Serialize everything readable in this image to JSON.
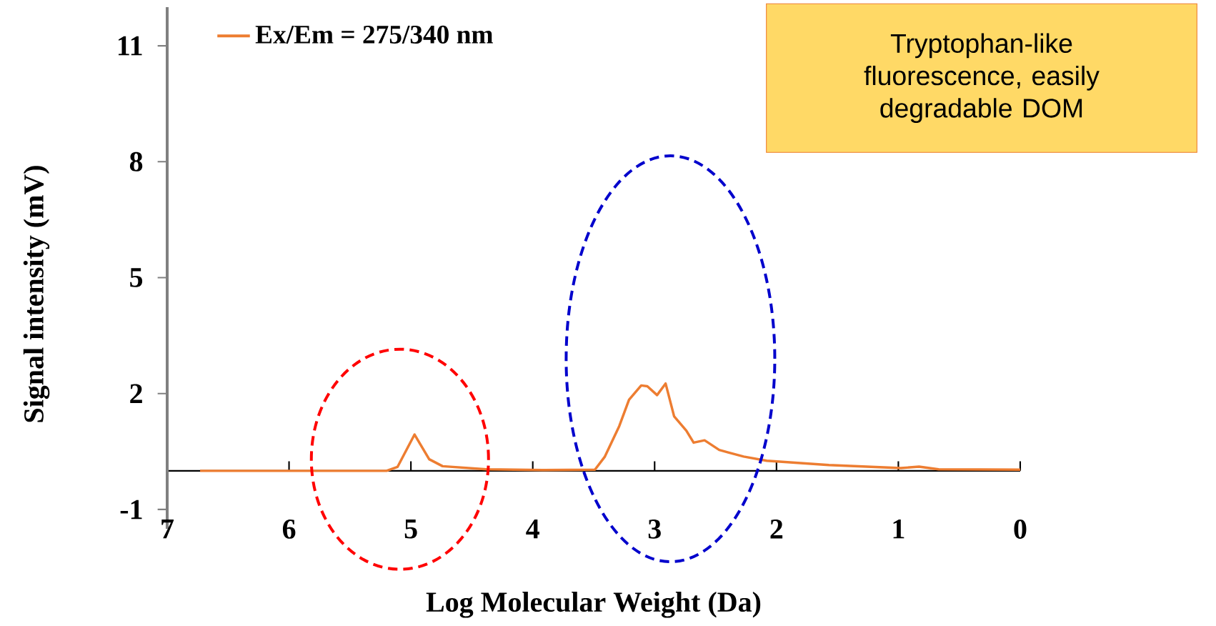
{
  "chart_data": {
    "type": "line",
    "xlabel": "Log Molecular Weight (Da)",
    "ylabel": "Signal intensity (mV)",
    "xlim": [
      7,
      0
    ],
    "ylim": [
      -1.5,
      12
    ],
    "xticks": [
      7,
      6,
      5,
      4,
      3,
      2,
      1,
      0
    ],
    "yticks": [
      -1,
      2,
      5,
      8,
      11
    ],
    "legend": "top left",
    "series": [
      {
        "name": "Ex/Em = 275/340 nm",
        "color": "#ed7d31",
        "x": [
          6.73,
          5.2,
          5.11,
          4.97,
          4.85,
          4.74,
          4.38,
          3.92,
          3.49,
          3.41,
          3.29,
          3.21,
          3.11,
          3.06,
          2.98,
          2.91,
          2.84,
          2.74,
          2.68,
          2.59,
          2.47,
          2.27,
          2.08,
          1.57,
          0.98,
          0.83,
          0.67,
          0.0
        ],
        "values": [
          0,
          0,
          0.1,
          0.94,
          0.3,
          0.12,
          0.04,
          0.02,
          0.03,
          0.36,
          1.16,
          1.84,
          2.21,
          2.19,
          1.96,
          2.26,
          1.41,
          1.04,
          0.73,
          0.79,
          0.54,
          0.37,
          0.26,
          0.15,
          0.07,
          0.11,
          0.04,
          0.03
        ]
      }
    ],
    "annotations": [
      "Tryptophan-like fluorescence, easily degradable DOM"
    ]
  }
}
